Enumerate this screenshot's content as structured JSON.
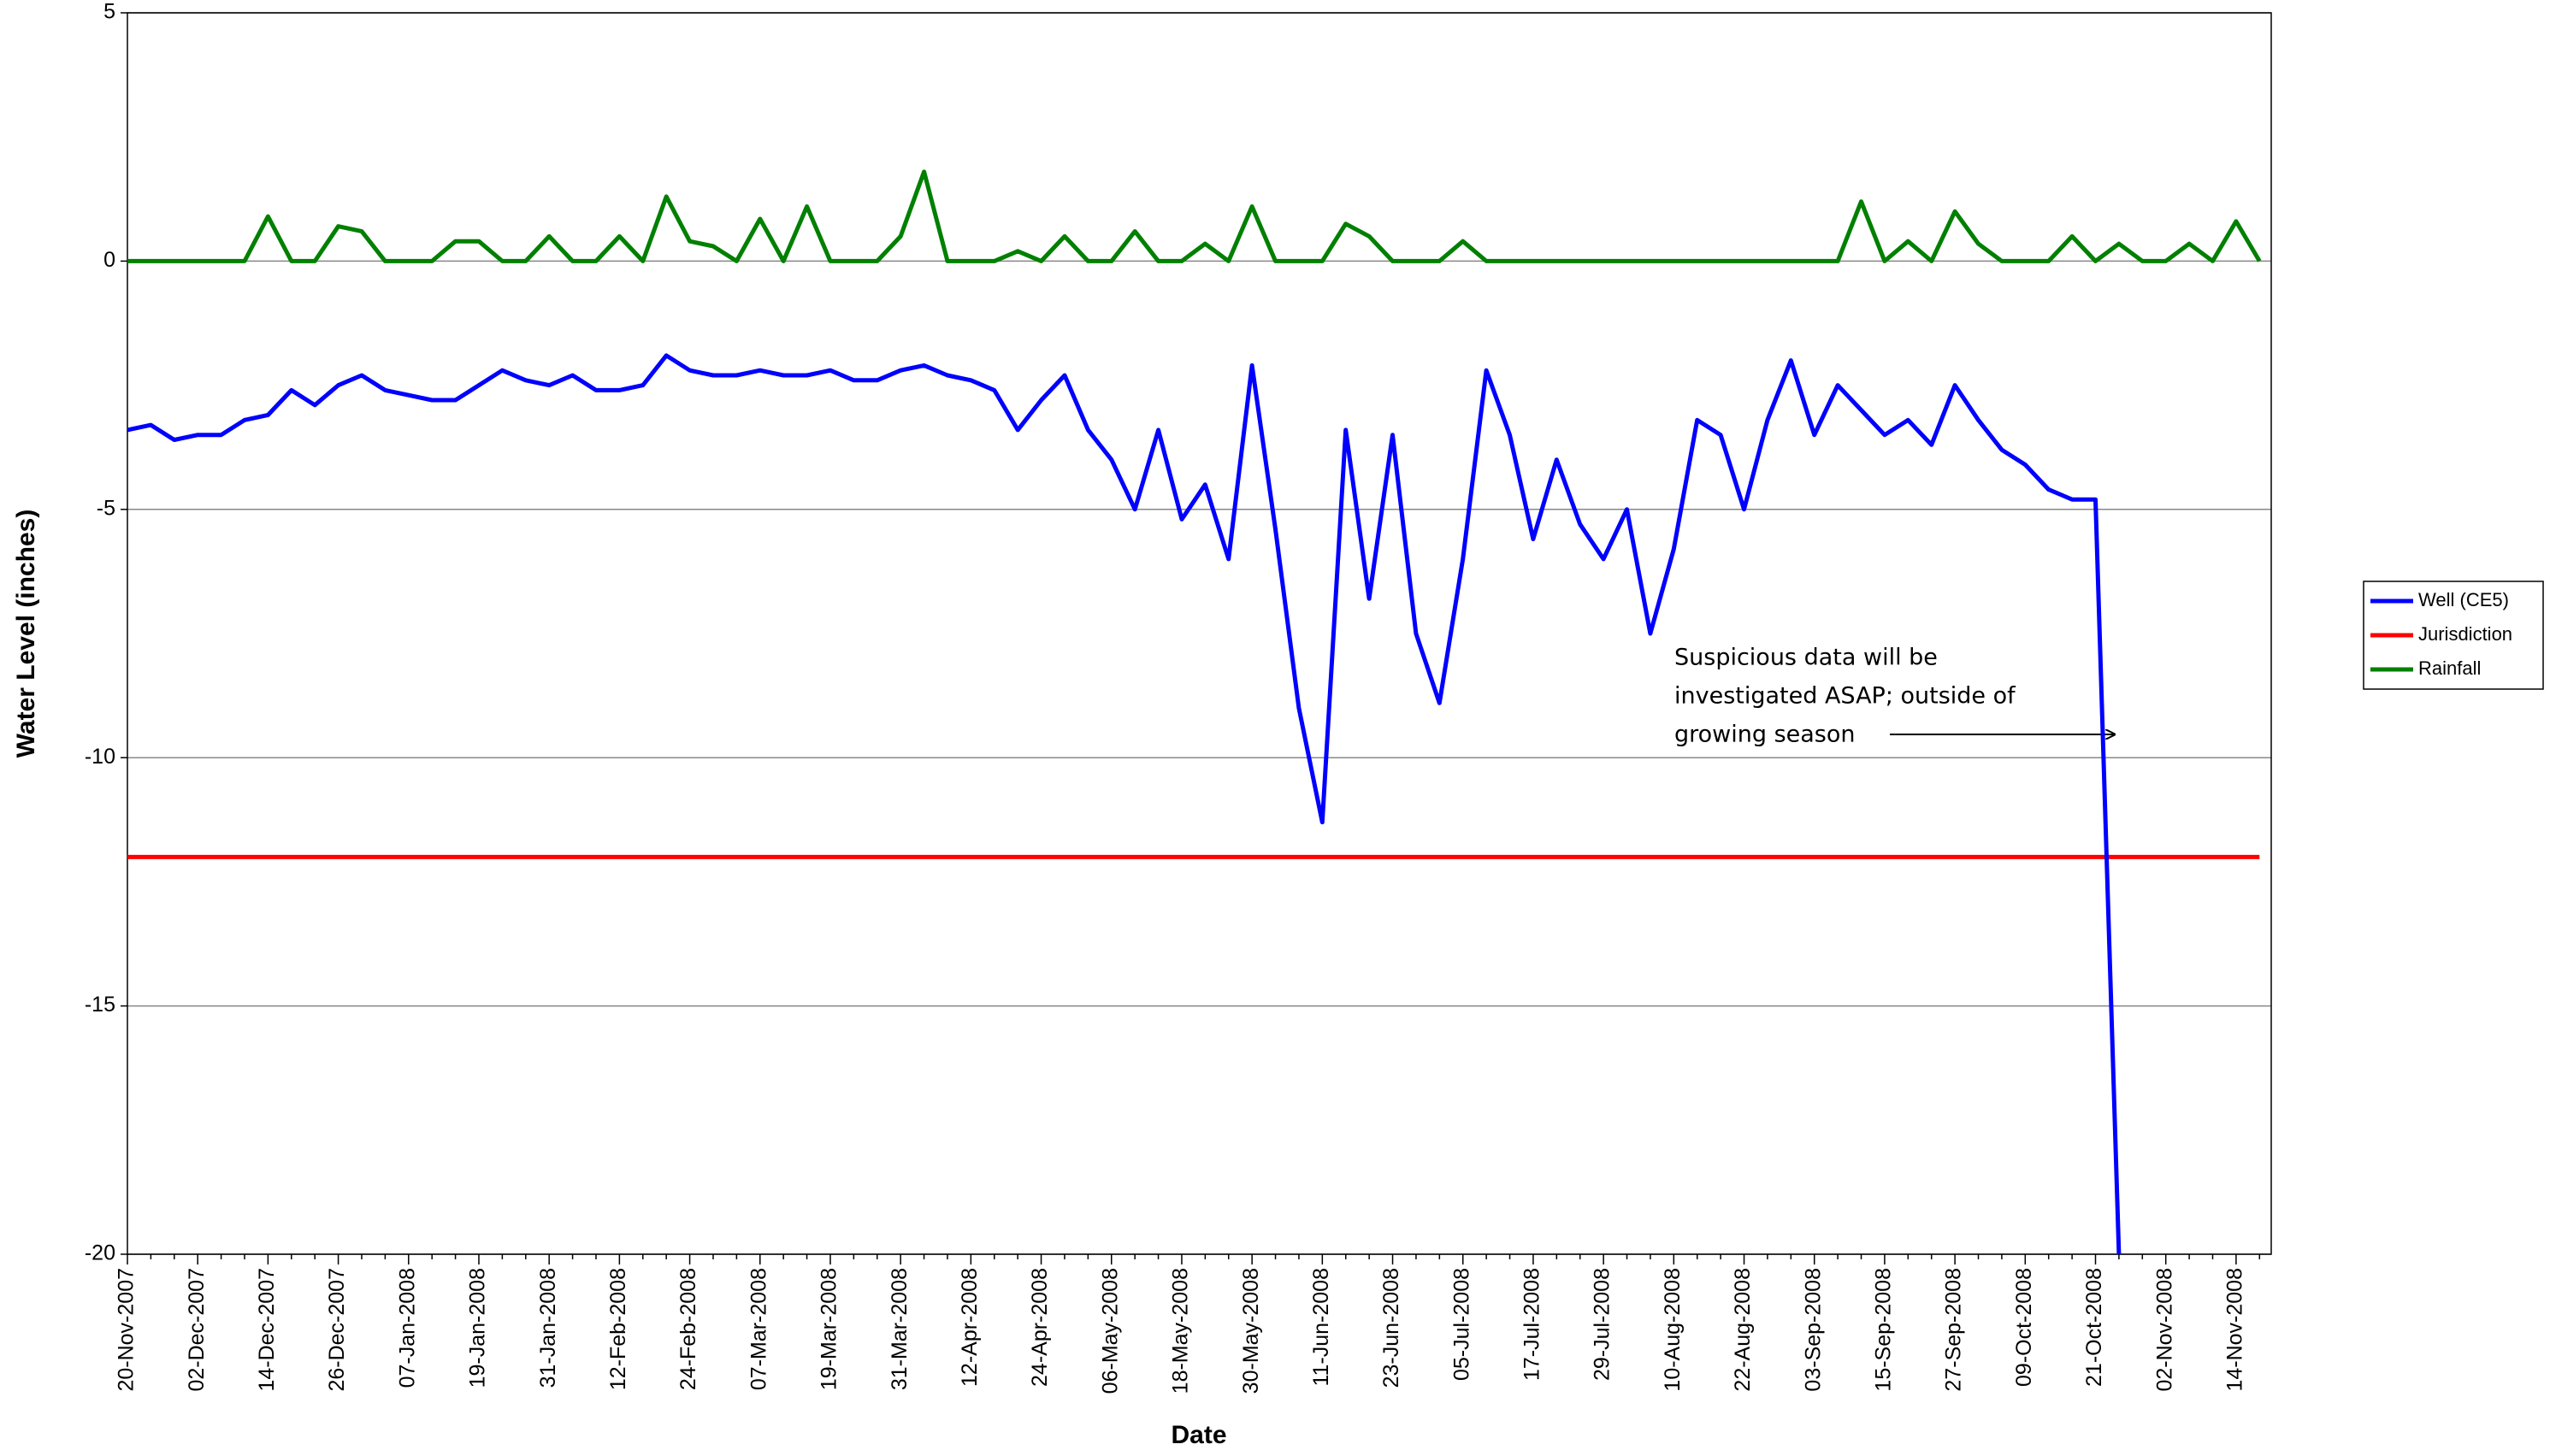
{
  "chart_data": {
    "type": "line",
    "x_label": "Date",
    "y_label": "Water Level (inches)",
    "annotation": [
      "Suspicious data will be",
      "investigated ASAP; outside of",
      "growing season"
    ],
    "ylim": [
      -20,
      5
    ],
    "yticks": [
      -20,
      -15,
      -10,
      -5,
      0,
      5
    ],
    "grid": true,
    "legend": "right",
    "categories": [
      "20-Nov-2007",
      null,
      null,
      "02-Dec-2007",
      null,
      null,
      "14-Dec-2007",
      null,
      null,
      "26-Dec-2007",
      null,
      null,
      "07-Jan-2008",
      null,
      null,
      "19-Jan-2008",
      null,
      null,
      "31-Jan-2008",
      null,
      null,
      "12-Feb-2008",
      null,
      null,
      "24-Feb-2008",
      null,
      null,
      "07-Mar-2008",
      null,
      null,
      "19-Mar-2008",
      null,
      null,
      "31-Mar-2008",
      null,
      null,
      "12-Apr-2008",
      null,
      null,
      "24-Apr-2008",
      null,
      null,
      "06-May-2008",
      null,
      null,
      "18-May-2008",
      null,
      null,
      "30-May-2008",
      null,
      null,
      "11-Jun-2008",
      null,
      null,
      "23-Jun-2008",
      null,
      null,
      "05-Jul-2008",
      null,
      null,
      "17-Jul-2008",
      null,
      null,
      "29-Jul-2008",
      null,
      null,
      "10-Aug-2008",
      null,
      null,
      "22-Aug-2008",
      null,
      null,
      "03-Sep-2008",
      null,
      null,
      "15-Sep-2008",
      null,
      null,
      "27-Sep-2008",
      null,
      null,
      "09-Oct-2008",
      null,
      null,
      "21-Oct-2008",
      null,
      null,
      "02-Nov-2008",
      null,
      null,
      "14-Nov-2008",
      null
    ],
    "series": [
      {
        "name": "Well (CE5)",
        "color": "#0000ff",
        "values": [
          -3.4,
          -3.3,
          -3.6,
          -3.5,
          -3.5,
          -3.2,
          -3.1,
          -2.6,
          -2.9,
          -2.5,
          -2.3,
          -2.6,
          -2.7,
          -2.8,
          -2.8,
          -2.5,
          -2.2,
          -2.4,
          -2.5,
          -2.3,
          -2.6,
          -2.6,
          -2.5,
          -1.9,
          -2.2,
          -2.3,
          -2.3,
          -2.2,
          -2.3,
          -2.3,
          -2.2,
          -2.4,
          -2.4,
          -2.2,
          -2.1,
          -2.3,
          -2.4,
          -2.6,
          -3.4,
          -2.8,
          -2.3,
          -3.4,
          -4.0,
          -5.0,
          -3.4,
          -5.2,
          -4.5,
          -6.0,
          -2.1,
          -5.4,
          -9.0,
          -11.3,
          -3.4,
          -6.8,
          -3.5,
          -7.5,
          -8.9,
          -6.0,
          -2.2,
          -3.5,
          -5.6,
          -4.0,
          -5.3,
          -6.0,
          -5.0,
          -7.5,
          -5.8,
          -3.2,
          -3.5,
          -5.0,
          -3.2,
          -2.0,
          -3.5,
          -2.5,
          -3.0,
          -3.5,
          -3.2,
          -3.7,
          -2.5,
          -3.2,
          -3.8,
          -4.1,
          -4.6,
          -4.8,
          -4.8,
          -20,
          null,
          null,
          null,
          null,
          null,
          null
        ]
      },
      {
        "name": "Jurisdiction",
        "color": "#ff0000",
        "values": [
          -12,
          -12,
          -12,
          -12,
          -12,
          -12,
          -12,
          -12,
          -12,
          -12,
          -12,
          -12,
          -12,
          -12,
          -12,
          -12,
          -12,
          -12,
          -12,
          -12,
          -12,
          -12,
          -12,
          -12,
          -12,
          -12,
          -12,
          -12,
          -12,
          -12,
          -12,
          -12,
          -12,
          -12,
          -12,
          -12,
          -12,
          -12,
          -12,
          -12,
          -12,
          -12,
          -12,
          -12,
          -12,
          -12,
          -12,
          -12,
          -12,
          -12,
          -12,
          -12,
          -12,
          -12,
          -12,
          -12,
          -12,
          -12,
          -12,
          -12,
          -12,
          -12,
          -12,
          -12,
          -12,
          -12,
          -12,
          -12,
          -12,
          -12,
          -12,
          -12,
          -12,
          -12,
          -12,
          -12,
          -12,
          -12,
          -12,
          -12,
          -12,
          -12,
          -12,
          -12,
          -12,
          -12,
          -12,
          -12,
          -12,
          -12,
          -12,
          -12
        ]
      },
      {
        "name": "Rainfall",
        "color": "#008000",
        "values": [
          0,
          0,
          0,
          0,
          0,
          0,
          0.9,
          0,
          0,
          0.7,
          0.6,
          0,
          0,
          0,
          0.4,
          0.4,
          0,
          0,
          0.5,
          0,
          0,
          0.5,
          0,
          1.3,
          0.4,
          0.3,
          0,
          0.85,
          0,
          1.1,
          0,
          0,
          0,
          0.5,
          1.8,
          0,
          0,
          0,
          0.2,
          0,
          0.5,
          0,
          0,
          0.6,
          0,
          0,
          0.35,
          0,
          1.1,
          0,
          0,
          0,
          0.75,
          0.5,
          0,
          0,
          0,
          0.4,
          0,
          0,
          0,
          0,
          0,
          0,
          0,
          0,
          0,
          0,
          0,
          0,
          0,
          0,
          0,
          0,
          1.2,
          0,
          0.4,
          0,
          1.0,
          0.35,
          0,
          0,
          0,
          0.5,
          0,
          0.35,
          0,
          0,
          0.35,
          0,
          0.8,
          0
        ]
      }
    ]
  }
}
